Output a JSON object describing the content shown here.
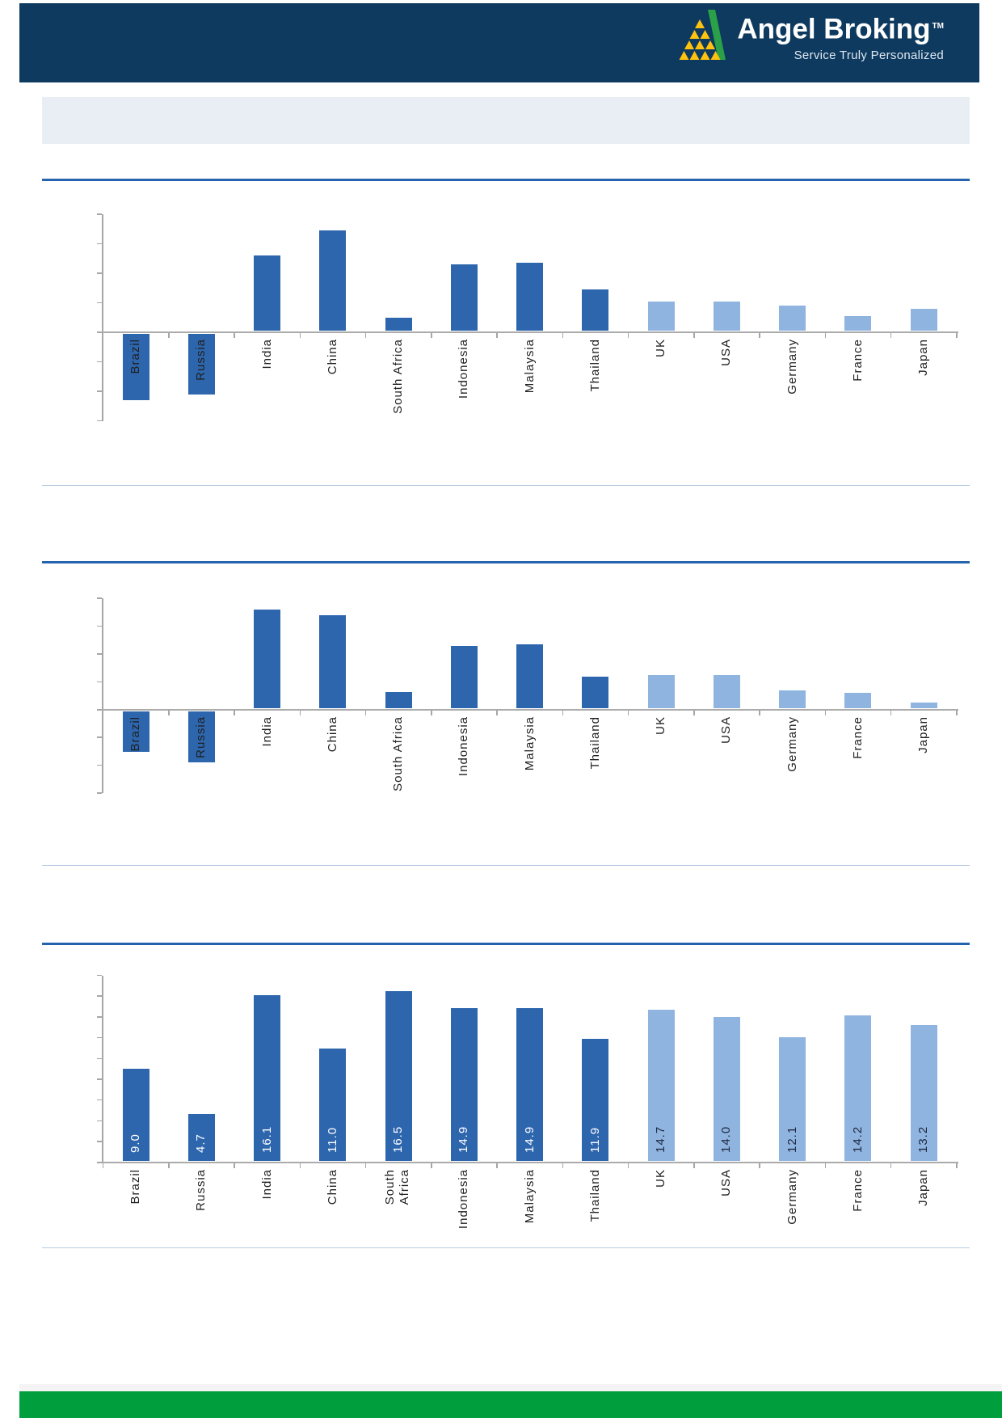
{
  "page": {
    "background": "#FFFFFF"
  },
  "header": {
    "band_color": "#0E3A5F",
    "brand_name": "Angel Broking",
    "trademark": "TM",
    "tagline": "Service Truly Personalized",
    "logo_mark": {
      "icon": "angel-broking-pyramid-logo",
      "triangle_color": "#FFC20E",
      "swoosh_color": "#2AA148"
    }
  },
  "banner": {
    "text": "",
    "color": "#E8EEF4"
  },
  "sections": [
    {
      "title": "",
      "rule_color": "#2563AE"
    },
    {
      "title": "",
      "rule_color": "#2563AE"
    },
    {
      "title": "",
      "rule_color": "#2563AE"
    }
  ],
  "chart_data": [
    {
      "type": "bar",
      "title": "",
      "xlabel": "",
      "ylabel": "",
      "categories": [
        "Brazil",
        "Russia",
        "India",
        "China",
        "South Africa",
        "Indonesia",
        "Malaysia",
        "Thailand",
        "UK",
        "USA",
        "Germany",
        "France",
        "Japan"
      ],
      "values": [
        -2.3,
        -2.1,
        2.6,
        3.45,
        0.5,
        2.3,
        2.35,
        1.45,
        1.05,
        1.05,
        0.9,
        0.55,
        0.8
      ],
      "value_unit_note": "y-axis tick labels not shown; values estimated in gridline units",
      "ylim": [
        -3,
        4
      ],
      "tick_step": 1,
      "grid": false,
      "legend": "none",
      "bar_color_dark": "#2E66AE",
      "bar_color_light": "#8FB4E0",
      "dark_bars_count": 8
    },
    {
      "type": "bar",
      "title": "",
      "xlabel": "",
      "ylabel": "",
      "categories": [
        "Brazil",
        "Russia",
        "India",
        "China",
        "South Africa",
        "Indonesia",
        "Malaysia",
        "Thailand",
        "UK",
        "USA",
        "Germany",
        "France",
        "Japan"
      ],
      "values": [
        -1.5,
        -1.9,
        3.6,
        3.4,
        0.65,
        2.3,
        2.35,
        1.2,
        1.25,
        1.25,
        0.7,
        0.6,
        0.25
      ],
      "value_unit_note": "y-axis tick labels not shown; values estimated in gridline units",
      "ylim": [
        -3,
        4
      ],
      "tick_step": 1,
      "grid": false,
      "legend": "none",
      "bar_color_dark": "#2E66AE",
      "bar_color_light": "#8FB4E0",
      "dark_bars_count": 8
    },
    {
      "type": "bar",
      "title": "",
      "xlabel": "",
      "ylabel": "",
      "categories": [
        "Brazil",
        "Russia",
        "India",
        "China",
        "South Africa",
        "Indonesia",
        "Malaysia",
        "Thailand",
        "UK",
        "USA",
        "Germany",
        "France",
        "Japan"
      ],
      "values": [
        9.0,
        4.7,
        16.1,
        11.0,
        16.5,
        14.9,
        14.9,
        11.9,
        14.7,
        14.0,
        12.1,
        14.2,
        13.2
      ],
      "data_labels": [
        "9.0",
        "4.7",
        "16.1",
        "11.0",
        "16.5",
        "14.9",
        "14.9",
        "11.9",
        "14.7",
        "14.0",
        "12.1",
        "14.2",
        "13.2"
      ],
      "value_unit_note": "y-axis tick labels not shown; bar data labels printed inside bars",
      "ylim": [
        0,
        18
      ],
      "tick_step": 2,
      "grid": false,
      "legend": "none",
      "bar_color_dark": "#2E66AE",
      "bar_color_light": "#8FB4E0",
      "dark_bars_count": 8,
      "label_color_on_dark": "#FFFFFF",
      "label_color_on_light": "#1F2A40"
    }
  ],
  "footer": {
    "green_bar_color": "#009E3C"
  }
}
